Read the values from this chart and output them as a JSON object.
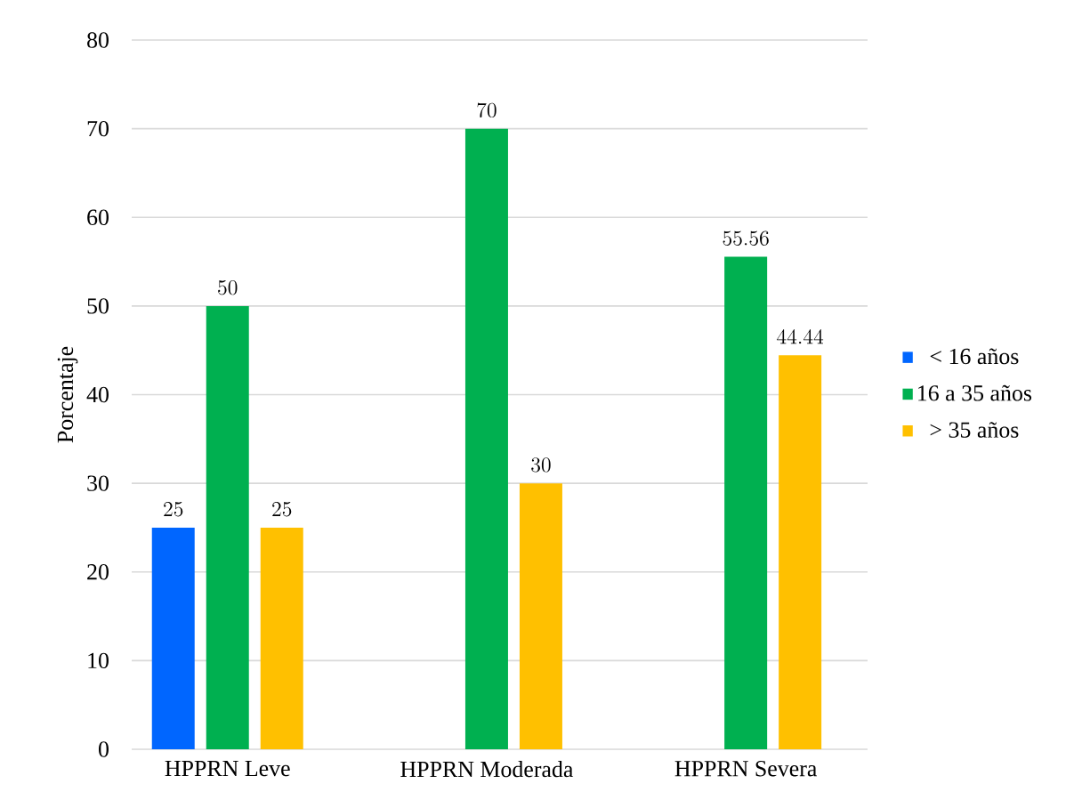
{
  "chart_data": {
    "type": "bar",
    "ylabel": "Porcentaje",
    "categories": [
      "HPPRN Leve",
      "HPPRN Moderada",
      "HPPRN Severa"
    ],
    "series": [
      {
        "name": "< 16 años",
        "color": "#0066ff",
        "values": [
          25,
          null,
          null
        ]
      },
      {
        "name": "16 a 35 años",
        "color": "#00b050",
        "values": [
          50,
          70,
          55.56
        ]
      },
      {
        "name": "> 35 años",
        "color": "#ffc000",
        "values": [
          25,
          30,
          44.44
        ]
      }
    ],
    "ylim": [
      0,
      80
    ],
    "yticks": [
      0,
      10,
      20,
      30,
      40,
      50,
      60,
      70,
      80
    ],
    "grid": "y",
    "legend": "right",
    "data_labels": true
  }
}
